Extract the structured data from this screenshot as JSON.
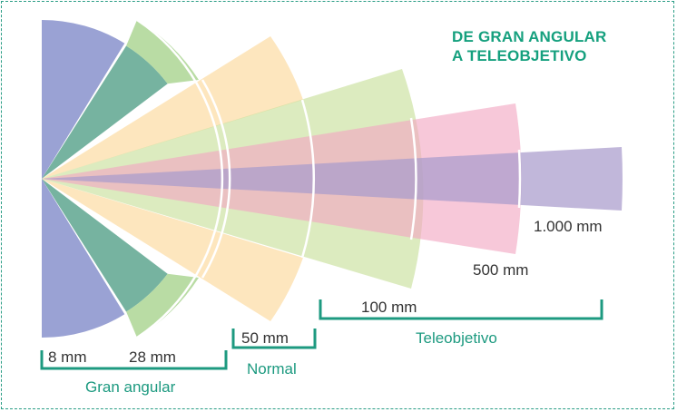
{
  "title": {
    "line1": "DE GRAN ANGULAR",
    "line2": "A TELEOBJETIVO"
  },
  "focal_labels": {
    "f8": "8 mm",
    "f28": "28 mm",
    "f50": "50 mm",
    "f100": "100 mm",
    "f500": "500 mm",
    "f1000": "1.000 mm"
  },
  "groups": {
    "wide": "Gran angular",
    "normal": "Normal",
    "tele": "Teleobjetivo"
  },
  "colors": {
    "mm8": "#9aa2d4",
    "mm28": "#76b3a0",
    "mm28_ring": "#b9dca4",
    "mm50": "#fbd696",
    "mm100": "#c7de97",
    "mm500": "#f2a7c2",
    "mm1000": "#a99bcc",
    "accent": "#15a07e",
    "bracket": "#1d9a80",
    "text": "#333333"
  }
}
